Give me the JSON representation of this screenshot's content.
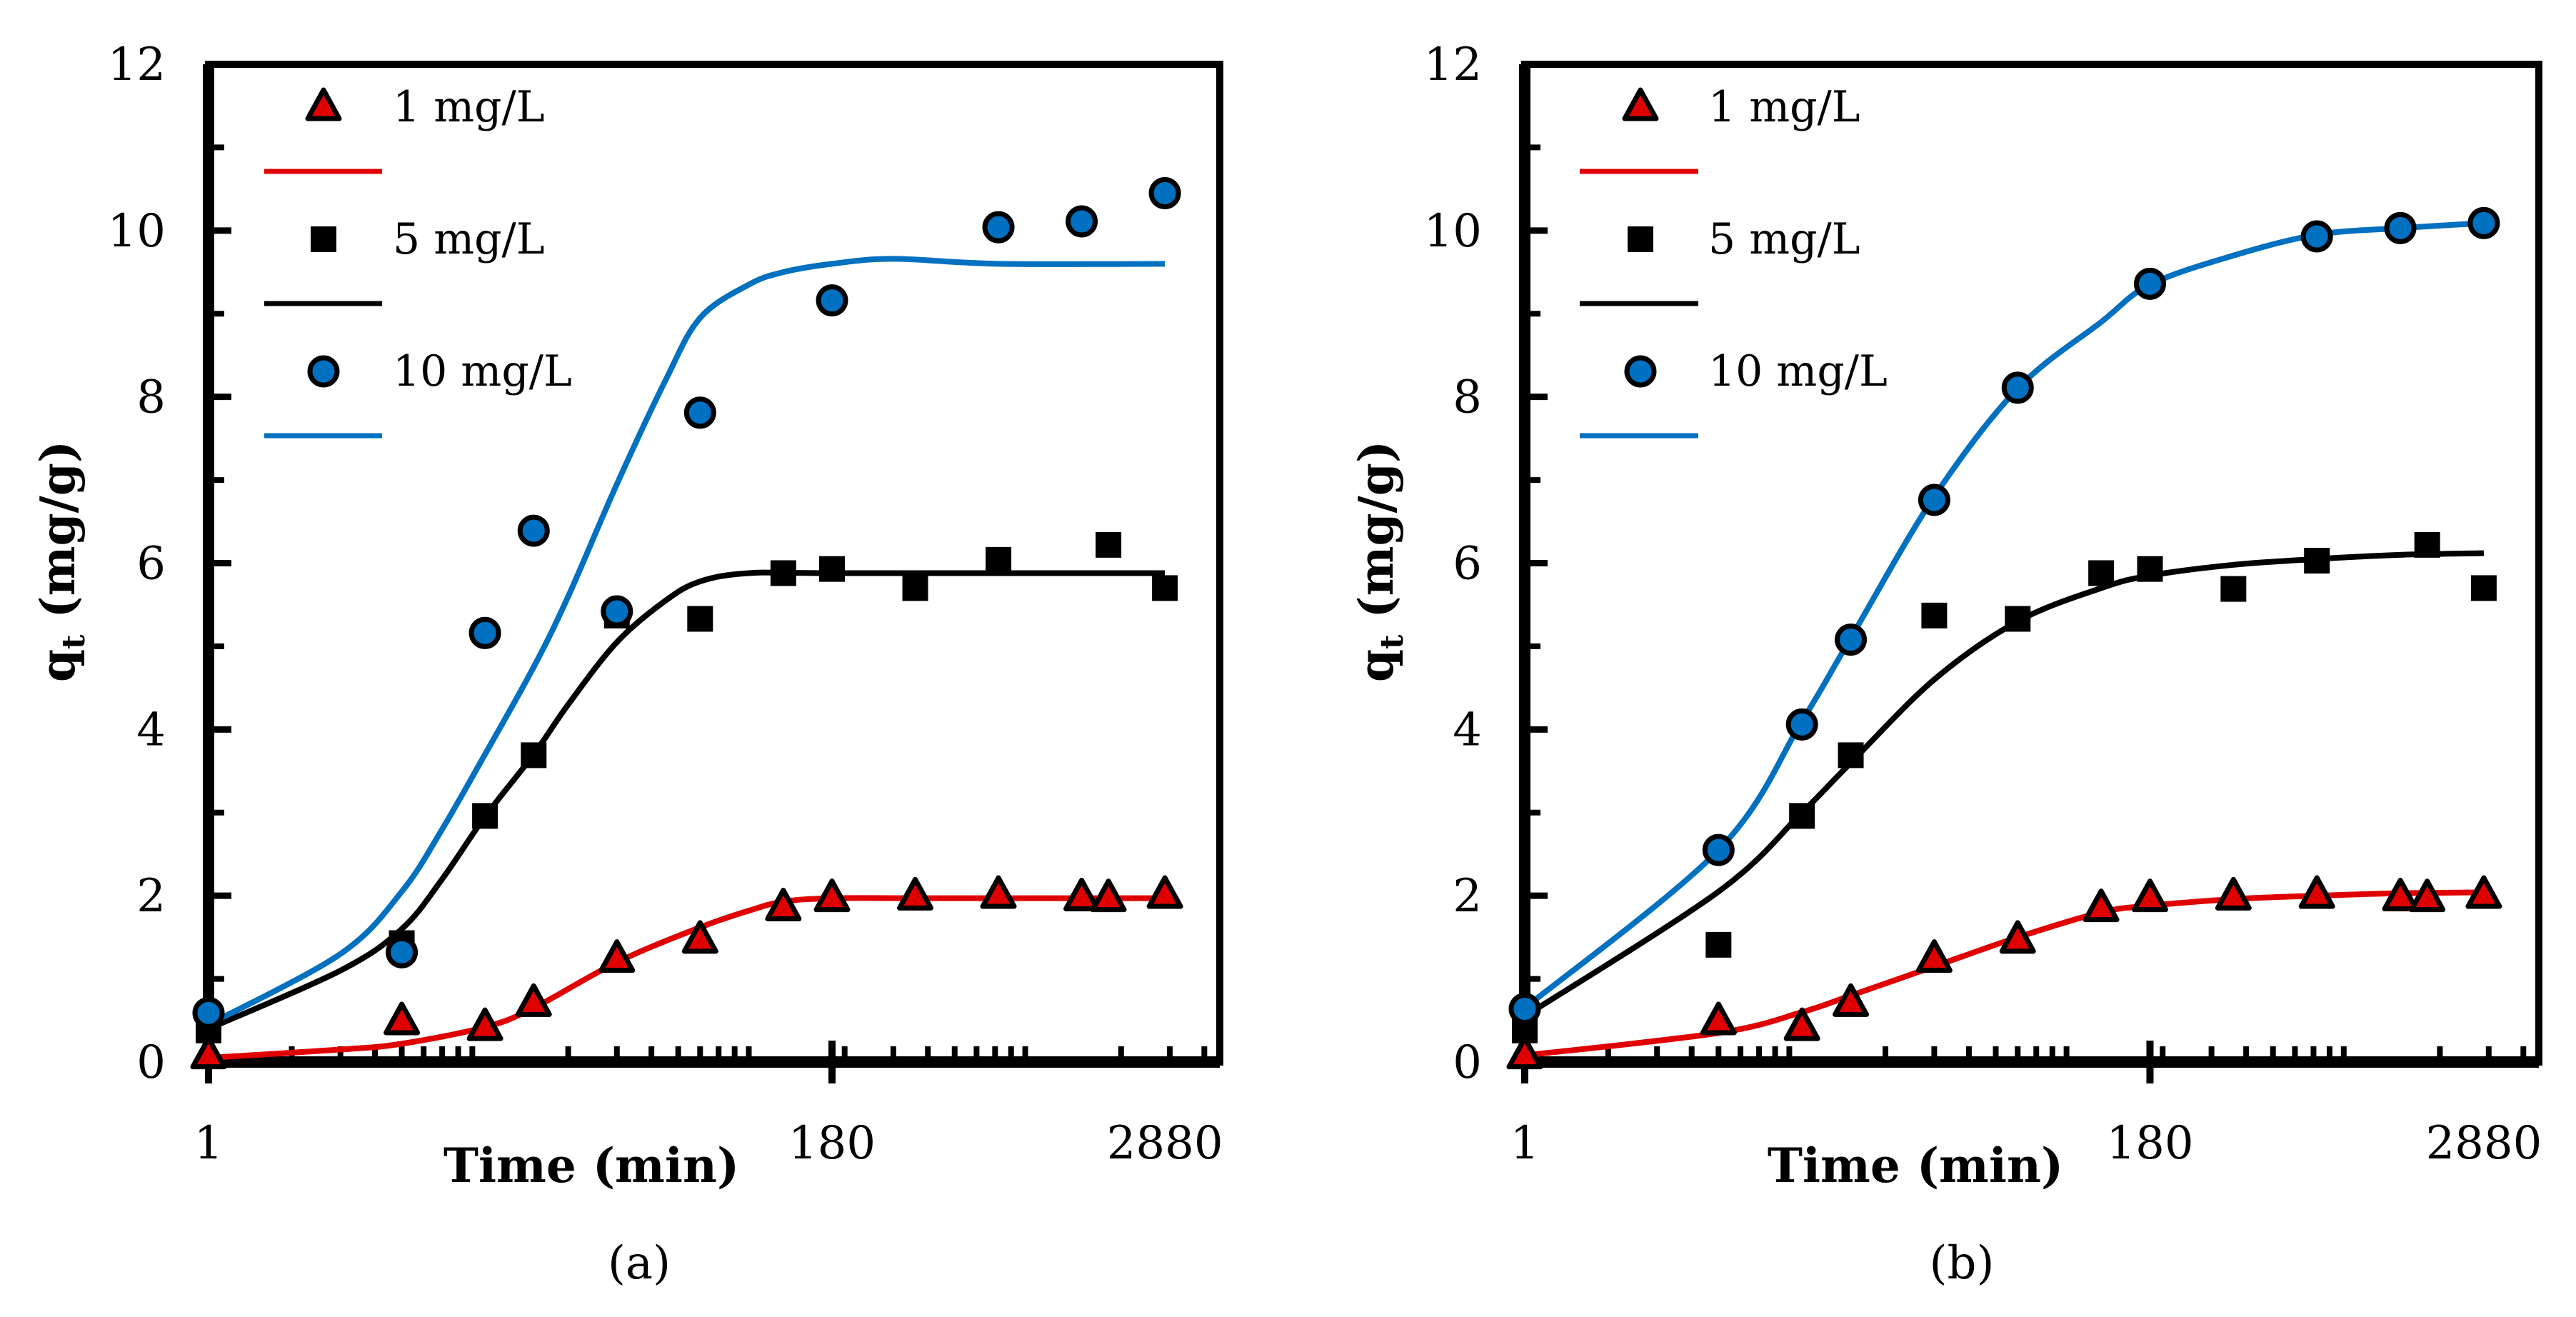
{
  "chart_data": [
    {
      "type": "scatter",
      "panel_label": "(a)",
      "xlabel": "Time (min)",
      "ylabel": "qt (mg/g)",
      "ylabel_main": "q",
      "ylabel_sub": "t",
      "ylabel_unit": " (mg/g)",
      "xscale": "log",
      "xlim": [
        1,
        4550
      ],
      "ylim": [
        0,
        12
      ],
      "x_tick_labels": [
        "1",
        "180",
        "2880"
      ],
      "x_tick_values": [
        1,
        180,
        2880
      ],
      "y_tick_labels": [
        "0",
        "2",
        "4",
        "6",
        "8",
        "10",
        "12"
      ],
      "legend_position": "top-left",
      "legend": [
        "1 mg/L",
        "",
        "5 mg/L",
        "",
        "10 mg/L",
        ""
      ],
      "x": [
        1,
        5,
        10,
        15,
        30,
        60,
        120,
        180,
        360,
        720,
        1440,
        1800,
        2880
      ],
      "series": [
        {
          "name": "1 mg/L",
          "marker": "triangle",
          "color": "#e00000",
          "values": [
            0.08,
            0.49,
            0.42,
            0.71,
            1.24,
            1.47,
            1.86,
            1.97,
            1.99,
            2.01,
            1.98,
            1.97,
            2.01
          ]
        },
        {
          "name": "5 mg/L",
          "marker": "square",
          "color": "#000000",
          "values": [
            0.38,
            1.43,
            2.96,
            3.69,
            5.37,
            5.33,
            5.88,
            5.93,
            5.7,
            6.04,
            null,
            6.22,
            5.7
          ]
        },
        {
          "name": "10 mg/L",
          "marker": "circle",
          "color": "#0070c0",
          "values": [
            0.59,
            1.32,
            5.16,
            6.39,
            5.42,
            7.81,
            null,
            9.16,
            null,
            10.04,
            10.11,
            null,
            10.45
          ]
        }
      ],
      "fits": [
        {
          "name": "1 mg/L fit",
          "color": "#e00000",
          "x": [
            1,
            3,
            5,
            10,
            15,
            30,
            60,
            90,
            120,
            180,
            360,
            2880
          ],
          "y": [
            0.05,
            0.15,
            0.22,
            0.42,
            0.65,
            1.2,
            1.62,
            1.82,
            1.93,
            1.97,
            1.97,
            1.97
          ]
        },
        {
          "name": "5 mg/L fit",
          "color": "#000000",
          "x": [
            1,
            3,
            5,
            7,
            10,
            15,
            20,
            30,
            45,
            60,
            90,
            180,
            2880
          ],
          "y": [
            0.4,
            1.1,
            1.6,
            2.2,
            2.95,
            3.7,
            4.3,
            5.05,
            5.55,
            5.78,
            5.88,
            5.88,
            5.88
          ]
        },
        {
          "name": "10 mg/L fit",
          "color": "#0070c0",
          "x": [
            1,
            3,
            5,
            7,
            10,
            15,
            20,
            30,
            45,
            60,
            90,
            120,
            180,
            300,
            720,
            2880
          ],
          "y": [
            0.45,
            1.3,
            2.05,
            2.8,
            3.7,
            4.75,
            5.6,
            6.95,
            8.2,
            8.95,
            9.35,
            9.5,
            9.6,
            9.66,
            9.6,
            9.6
          ]
        }
      ]
    },
    {
      "type": "scatter",
      "panel_label": "(b)",
      "xlabel": "Time (min)",
      "ylabel": "qt (mg/g)",
      "ylabel_main": "q",
      "ylabel_sub": "t",
      "ylabel_unit": " (mg/g)",
      "xscale": "log",
      "xlim": [
        1,
        4550
      ],
      "ylim": [
        0,
        12
      ],
      "x_tick_labels": [
        "1",
        "180",
        "2880"
      ],
      "x_tick_values": [
        1,
        180,
        2880
      ],
      "y_tick_labels": [
        "0",
        "2",
        "4",
        "6",
        "8",
        "10",
        "12"
      ],
      "legend_position": "top-left",
      "legend": [
        "1 mg/L",
        "",
        "5 mg/L",
        "",
        "10 mg/L",
        ""
      ],
      "x": [
        1,
        5,
        10,
        15,
        30,
        60,
        120,
        180,
        360,
        720,
        1440,
        1800,
        2880
      ],
      "series": [
        {
          "name": "1 mg/L",
          "marker": "triangle",
          "color": "#e00000",
          "values": [
            0.08,
            0.49,
            0.42,
            0.71,
            1.24,
            1.47,
            1.85,
            1.97,
            1.99,
            2.01,
            1.98,
            1.97,
            2.01
          ]
        },
        {
          "name": "5 mg/L",
          "marker": "square",
          "color": "#000000",
          "values": [
            0.38,
            1.41,
            2.96,
            3.69,
            5.37,
            5.33,
            5.88,
            5.93,
            5.69,
            6.03,
            null,
            6.22,
            5.7
          ]
        },
        {
          "name": "10 mg/L",
          "marker": "circle",
          "color": "#0070c0",
          "values": [
            0.64,
            2.55,
            4.06,
            5.08,
            6.76,
            8.11,
            null,
            9.36,
            null,
            9.93,
            10.03,
            null,
            10.09
          ]
        }
      ],
      "fits": [
        {
          "name": "1 mg/L fit",
          "color": "#e00000",
          "x": [
            1,
            5,
            10,
            15,
            30,
            60,
            120,
            180,
            360,
            720,
            1440,
            2880
          ],
          "y": [
            0.08,
            0.35,
            0.6,
            0.8,
            1.15,
            1.5,
            1.8,
            1.88,
            1.96,
            2.0,
            2.03,
            2.04
          ]
        },
        {
          "name": "5 mg/L fit",
          "color": "#000000",
          "x": [
            1,
            5,
            10,
            15,
            30,
            60,
            120,
            180,
            360,
            720,
            1440,
            2880
          ],
          "y": [
            0.55,
            2.05,
            3.0,
            3.6,
            4.6,
            5.3,
            5.7,
            5.85,
            5.98,
            6.05,
            6.1,
            6.12
          ]
        },
        {
          "name": "10 mg/L fit",
          "color": "#0070c0",
          "x": [
            1,
            5,
            10,
            15,
            30,
            60,
            120,
            180,
            360,
            720,
            1440,
            2880
          ],
          "y": [
            0.65,
            2.55,
            4.1,
            5.1,
            6.8,
            8.1,
            8.9,
            9.35,
            9.7,
            9.95,
            10.03,
            10.09
          ]
        }
      ]
    }
  ]
}
